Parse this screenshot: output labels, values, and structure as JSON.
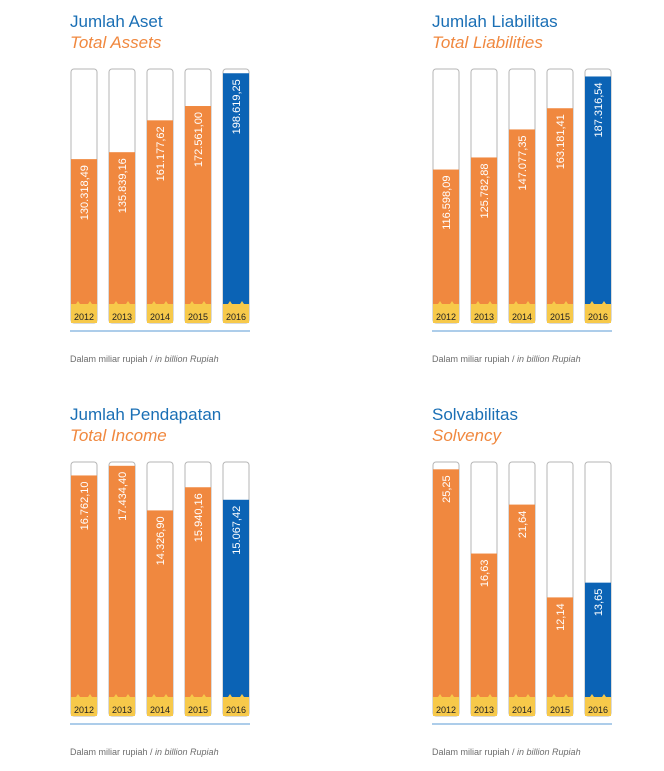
{
  "colors": {
    "orange": "#f0883f",
    "blue": "#0b63b5",
    "yellow": "#f7c94a",
    "frame": "#b5b5b5",
    "baseline": "#5b9bd5"
  },
  "footnote": {
    "prefix": "Dalam miliar rupiah / ",
    "italic": "in billion Rupiah"
  },
  "chart_data": [
    {
      "type": "bar",
      "title": "Jumlah Aset",
      "subtitle": "Total Assets",
      "categories": [
        "2012",
        "2013",
        "2014",
        "2015",
        "2016"
      ],
      "values": [
        130318.49,
        135839.16,
        161177.62,
        172561.0,
        198619.25
      ],
      "labels": [
        "130.318,49",
        "135.839,16",
        "161.177,62",
        "172.561,00",
        "198.619,25"
      ],
      "highlight_index": 4,
      "ylim": [
        0,
        202000
      ]
    },
    {
      "type": "bar",
      "title": "Jumlah Liabilitas",
      "subtitle": "Total Liabilities",
      "categories": [
        "2012",
        "2013",
        "2014",
        "2015",
        "2016"
      ],
      "values": [
        116598.09,
        125782.88,
        147077.35,
        163181.41,
        187316.54
      ],
      "labels": [
        "116.598,09",
        "125.782,88",
        "147.077,35",
        "163.181,41",
        "187.316,54"
      ],
      "highlight_index": 4,
      "ylim": [
        0,
        193000
      ]
    },
    {
      "type": "bar",
      "title": "Jumlah Pendapatan",
      "subtitle": "Total Income",
      "categories": [
        "2012",
        "2013",
        "2014",
        "2015",
        "2016"
      ],
      "values": [
        16762.1,
        17434.4,
        14326.9,
        15940.16,
        15067.42
      ],
      "labels": [
        "16.762,10",
        "17.434,40",
        "14.326,90",
        "15.940,16",
        "15.067,42"
      ],
      "highlight_index": 4,
      "ylim": [
        0,
        17700
      ]
    },
    {
      "type": "bar",
      "title": "Solvabilitas",
      "subtitle": "Solvency",
      "categories": [
        "2012",
        "2013",
        "2014",
        "2015",
        "2016"
      ],
      "values": [
        25.25,
        16.63,
        21.64,
        12.14,
        13.65
      ],
      "labels": [
        "25,25",
        "16,63",
        "21,64",
        "12,14",
        "13,65"
      ],
      "highlight_index": 4,
      "ylim": [
        0,
        26
      ]
    }
  ]
}
